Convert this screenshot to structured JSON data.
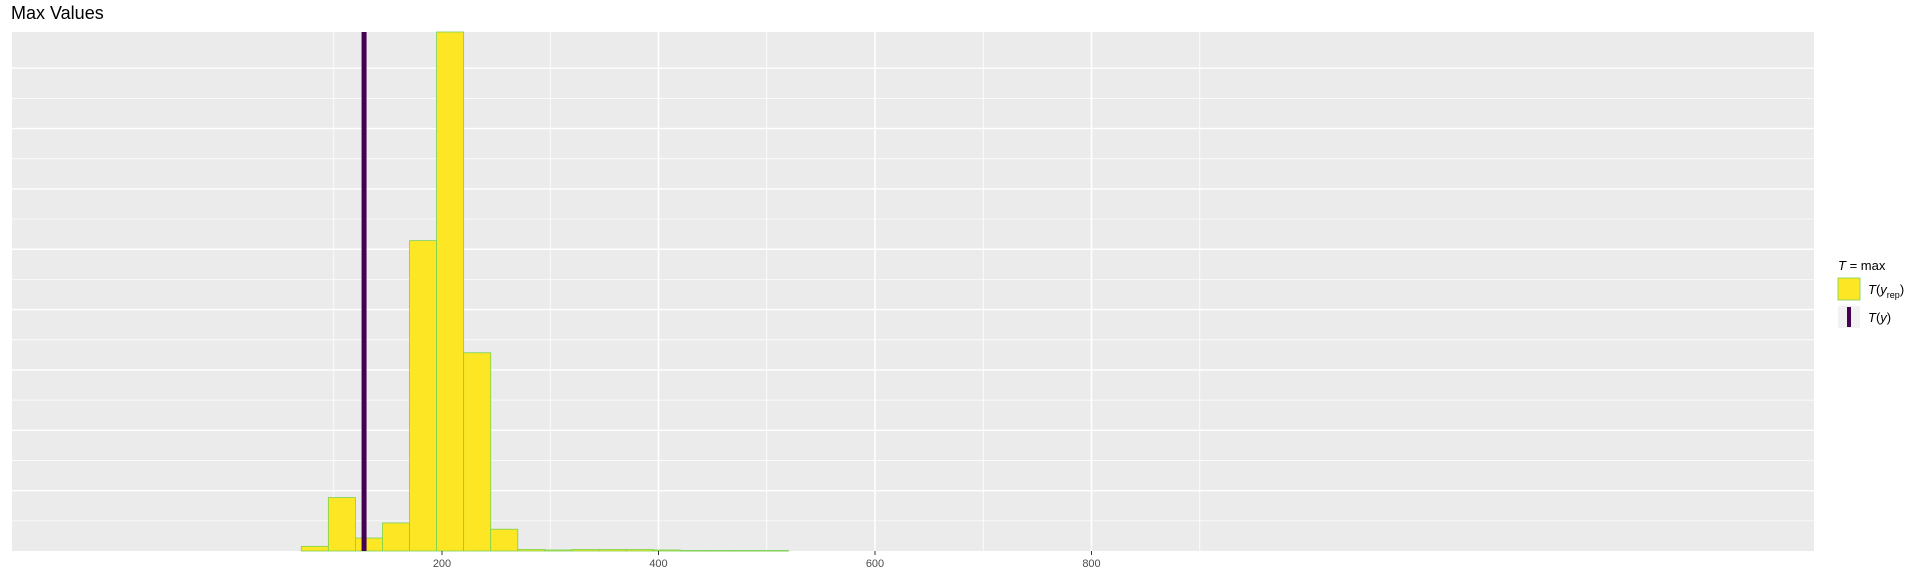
{
  "chart_data": {
    "type": "bar",
    "title": "Max Values",
    "xlabel": "",
    "ylabel": "",
    "xlim": [
      45,
      830
    ],
    "ylim": [
      0,
      1
    ],
    "x_ticks": [
      200,
      400,
      600,
      800
    ],
    "bin_width": 25,
    "bins": [
      {
        "x0": 70,
        "x1": 95,
        "value": 0.009
      },
      {
        "x0": 95,
        "x1": 120,
        "value": 0.103
      },
      {
        "x0": 120,
        "x1": 145,
        "value": 0.025
      },
      {
        "x0": 145,
        "x1": 170,
        "value": 0.054
      },
      {
        "x0": 170,
        "x1": 195,
        "value": 0.598
      },
      {
        "x0": 195,
        "x1": 220,
        "value": 1.0
      },
      {
        "x0": 220,
        "x1": 245,
        "value": 0.382
      },
      {
        "x0": 245,
        "x1": 270,
        "value": 0.042
      },
      {
        "x0": 270,
        "x1": 295,
        "value": 0.003
      },
      {
        "x0": 295,
        "x1": 320,
        "value": 0.002
      },
      {
        "x0": 320,
        "x1": 345,
        "value": 0.003
      },
      {
        "x0": 345,
        "x1": 370,
        "value": 0.003
      },
      {
        "x0": 370,
        "x1": 395,
        "value": 0.003
      },
      {
        "x0": 395,
        "x1": 420,
        "value": 0.002
      },
      {
        "x0": 420,
        "x1": 445,
        "value": 0.001
      },
      {
        "x0": 445,
        "x1": 470,
        "value": 0.001
      },
      {
        "x0": 470,
        "x1": 495,
        "value": 0.001
      },
      {
        "x0": 495,
        "x1": 520,
        "value": 0.001
      }
    ],
    "observed_value": 128,
    "grid": true,
    "legend_position": "right",
    "legend": {
      "title": "T = max",
      "items": [
        {
          "label": "T(y_rep)",
          "kind": "fill"
        },
        {
          "label": "T(y)",
          "kind": "line"
        }
      ]
    },
    "colors": {
      "bar_fill": "#fde725",
      "bar_outline": "#7ad151",
      "observed_line": "#440154",
      "panel": "#ebebeb",
      "grid": "#ffffff"
    }
  }
}
